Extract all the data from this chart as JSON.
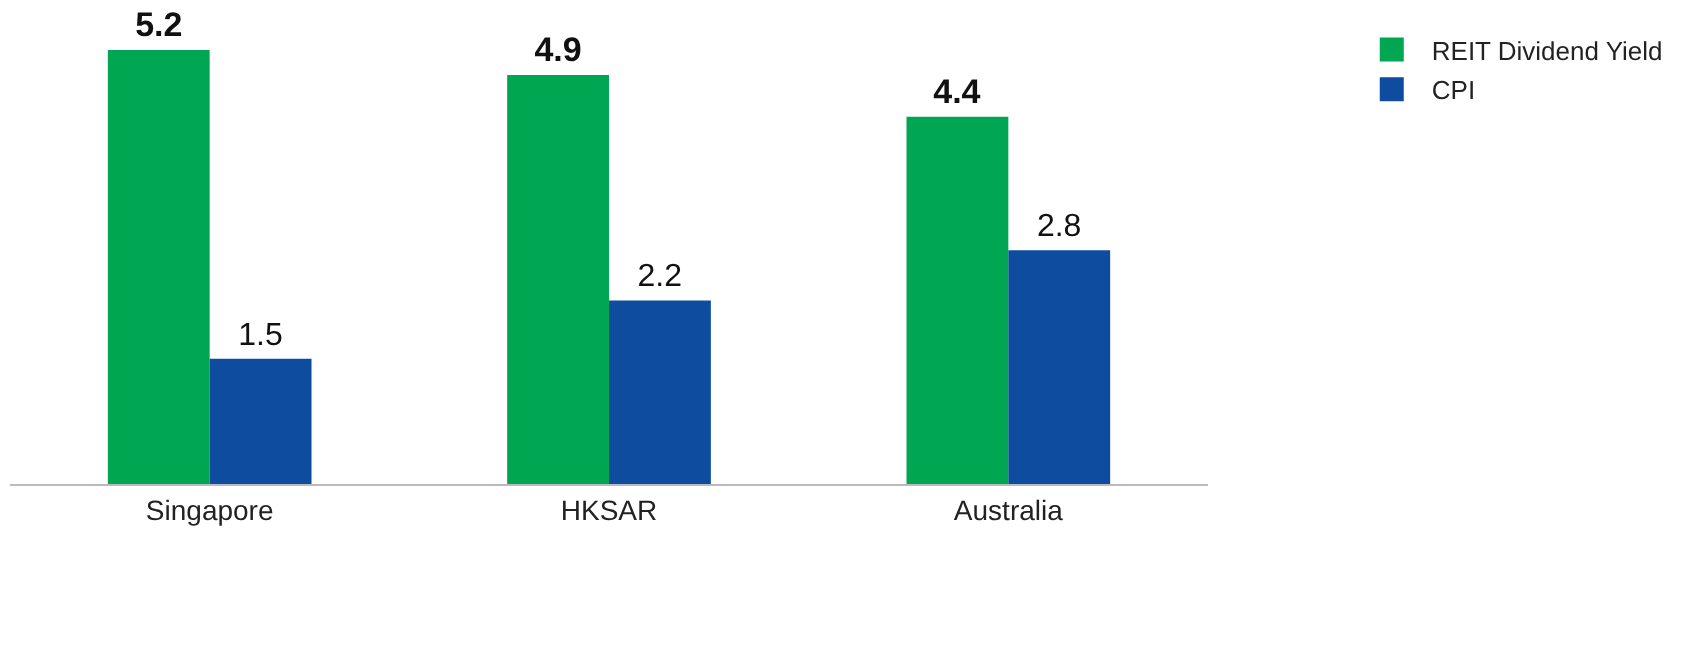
{
  "chart_data": {
    "type": "bar",
    "categories": [
      "Singapore",
      "HKSAR",
      "Australia"
    ],
    "series": [
      {
        "name": "REIT Dividend Yield",
        "color": "#00a651",
        "values": [
          5.2,
          4.9,
          4.4
        ]
      },
      {
        "name": "CPI",
        "color": "#0d4c9f",
        "values": [
          1.5,
          2.2,
          2.8
        ]
      }
    ],
    "ylim": [
      0,
      5.2
    ],
    "data_labels": true,
    "legend": "top right",
    "tick_labels": "x"
  }
}
